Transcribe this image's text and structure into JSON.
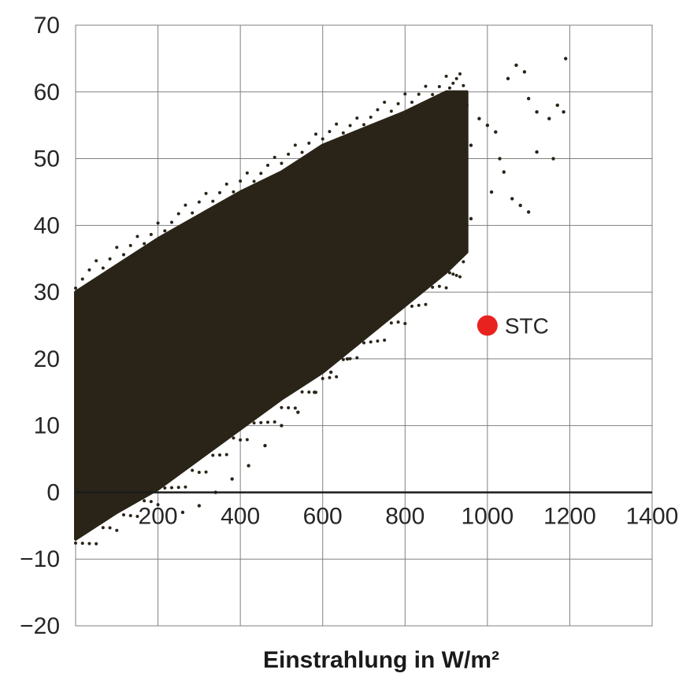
{
  "chart_data": {
    "type": "scatter",
    "title": "",
    "xlabel": "Einstrahlung in W/m²",
    "ylabel": "",
    "xlim": [
      0,
      1400
    ],
    "ylim": [
      -20,
      70
    ],
    "x_ticks": [
      200,
      400,
      600,
      800,
      1000,
      1200,
      1400
    ],
    "y_ticks": [
      70,
      60,
      50,
      40,
      30,
      20,
      10,
      0,
      -10,
      -20
    ],
    "x_tick_labels": [
      "200",
      "400",
      "600",
      "800",
      "1000",
      "1200",
      "1400"
    ],
    "y_tick_labels": [
      "70",
      "60",
      "50",
      "40",
      "30",
      "20",
      "10",
      "0",
      "−10",
      "−20"
    ],
    "grid": true,
    "colors": {
      "points": "#2a2418",
      "stc": "#e8231f",
      "grid": "#808080"
    },
    "series": [
      {
        "description_free": true,
        "band": {
          "x": [
            0,
            100,
            200,
            300,
            400,
            500,
            600,
            700,
            800,
            900,
            950
          ],
          "y_upper": [
            30,
            34,
            38,
            41.5,
            45,
            48,
            52,
            54.5,
            57,
            60,
            60
          ],
          "y_lower": [
            -7,
            -3,
            0.5,
            5,
            9.5,
            14,
            18,
            23,
            28,
            33,
            36
          ]
        },
        "outliers": [
          [
            950,
            58
          ],
          [
            980,
            56
          ],
          [
            1000,
            55
          ],
          [
            1020,
            54
          ],
          [
            1050,
            62
          ],
          [
            1070,
            64
          ],
          [
            1090,
            63
          ],
          [
            1100,
            59
          ],
          [
            1120,
            57
          ],
          [
            1150,
            56
          ],
          [
            1170,
            58
          ],
          [
            1190,
            65
          ],
          [
            1185,
            57
          ],
          [
            1160,
            50
          ],
          [
            1060,
            44
          ],
          [
            1080,
            43
          ],
          [
            1100,
            42
          ],
          [
            1040,
            48
          ],
          [
            1010,
            45
          ],
          [
            960,
            41
          ],
          [
            920,
            38
          ],
          [
            900,
            35
          ],
          [
            870,
            32
          ],
          [
            820,
            31
          ],
          [
            780,
            29
          ],
          [
            700,
            24
          ],
          [
            660,
            20
          ],
          [
            620,
            18
          ],
          [
            580,
            15
          ],
          [
            540,
            12
          ],
          [
            500,
            10
          ],
          [
            460,
            7
          ],
          [
            420,
            4
          ],
          [
            380,
            2
          ],
          [
            340,
            0
          ],
          [
            300,
            -2
          ],
          [
            260,
            -3
          ],
          [
            960,
            52
          ],
          [
            1030,
            50
          ],
          [
            1120,
            51
          ]
        ],
        "stc_ticks": []
      }
    ],
    "annotations": [
      {
        "text": "STC",
        "x": 1000,
        "y": 25
      }
    ]
  }
}
